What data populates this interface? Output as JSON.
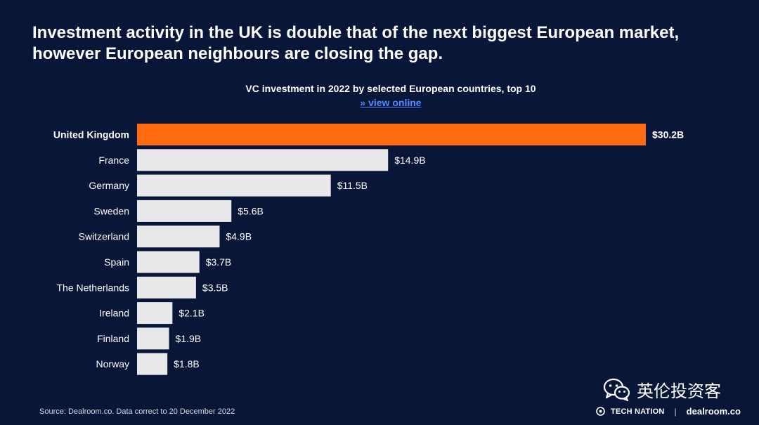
{
  "headline": {
    "line1": "Investment activity in the UK is double that of the next biggest European market,",
    "line2": "however European neighbours are closing the gap."
  },
  "view_online_label": "» view online",
  "source_text": "Source: Dealroom.co. Data correct to 20 December 2022",
  "watermark": {
    "icon": "wechat-icon",
    "text": "英伦投资客"
  },
  "footer": {
    "tech_nation": "TECH NATION",
    "separator": "|",
    "dealroom": "dealroom.co"
  },
  "colors": {
    "background": "#0a1637",
    "highlight_bar": "#ff6b0f",
    "default_bar": "#e8e8ea",
    "link": "#4f8cff"
  },
  "chart_data": {
    "type": "bar",
    "orientation": "horizontal",
    "title": "VC investment in 2022 by selected European countries, top 10",
    "xlabel": "",
    "ylabel": "",
    "unit": "$B",
    "xlim": [
      0,
      30.2
    ],
    "grid": false,
    "categories": [
      "United Kingdom",
      "France",
      "Germany",
      "Sweden",
      "Switzerland",
      "Spain",
      "The Netherlands",
      "Ireland",
      "Finland",
      "Norway"
    ],
    "values": [
      30.2,
      14.9,
      11.5,
      5.6,
      4.9,
      3.7,
      3.5,
      2.1,
      1.9,
      1.8
    ],
    "value_labels": [
      "$30.2B",
      "$14.9B",
      "$11.5B",
      "$5.6B",
      "$4.9B",
      "$3.7B",
      "$3.5B",
      "$2.1B",
      "$1.9B",
      "$1.8B"
    ],
    "highlighted_category": "United Kingdom"
  }
}
